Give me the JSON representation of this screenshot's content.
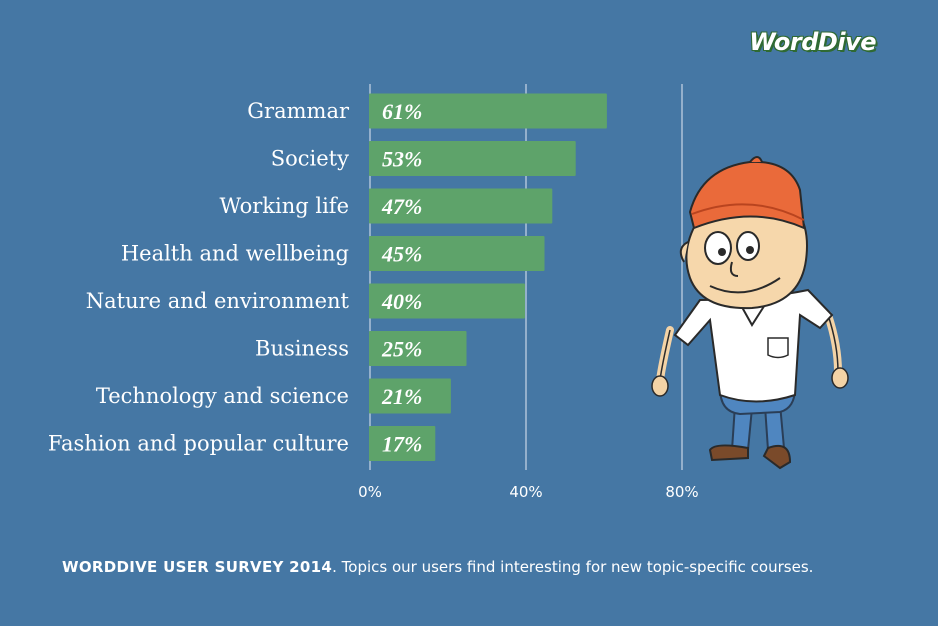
{
  "logo": "WordDive",
  "caption": {
    "bold": "WORDDIVE USER SURVEY 2014",
    "text": ". Topics our users find interesting for new topic-specific courses."
  },
  "colors": {
    "background": "#4577a4",
    "bar": "#5ea36a",
    "gridline": "#c9d7e6"
  },
  "chart_data": {
    "type": "bar",
    "orientation": "horizontal",
    "categories": [
      "Grammar",
      "Society",
      "Working life",
      "Health and wellbeing",
      "Nature and environment",
      "Business",
      "Technology and science",
      "Fashion and popular culture"
    ],
    "values": [
      61,
      53,
      47,
      45,
      40,
      25,
      21,
      17
    ],
    "value_labels": [
      "61%",
      "53%",
      "47%",
      "45%",
      "40%",
      "25%",
      "21%",
      "17%"
    ],
    "xlim": [
      0,
      80
    ],
    "xticks": [
      0,
      40,
      80
    ],
    "xtick_labels": [
      "0%",
      "40%",
      "80%"
    ],
    "grid": true
  }
}
